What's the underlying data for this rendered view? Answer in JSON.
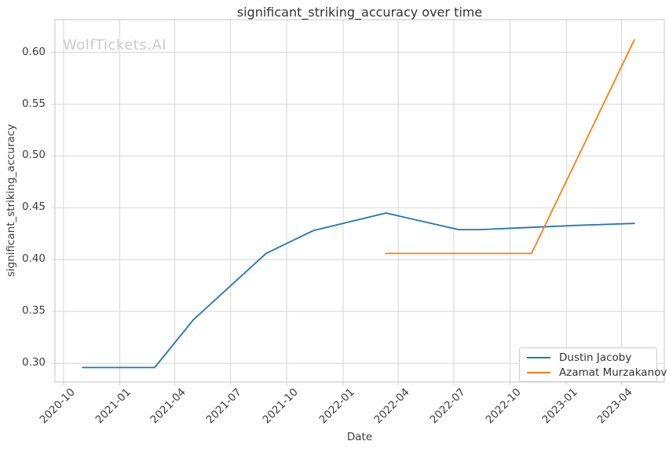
{
  "watermark": "WolfTickets.AI",
  "chart_data": {
    "type": "line",
    "title": "significant_striking_accuracy over time",
    "xlabel": "Date",
    "ylabel": "significant_striking_accuracy",
    "grid": true,
    "legend_position": "lower-right",
    "x_ticks": [
      "2020-10",
      "2021-01",
      "2021-04",
      "2021-07",
      "2021-10",
      "2022-01",
      "2022-04",
      "2022-07",
      "2022-10",
      "2023-01",
      "2023-04"
    ],
    "y_ticks": [
      "0.30",
      "0.35",
      "0.40",
      "0.45",
      "0.50",
      "0.55",
      "0.60"
    ],
    "xlim": [
      "2020-09-17",
      "2023-06-10"
    ],
    "ylim": [
      0.282,
      0.6315
    ],
    "colors": {
      "grid": "#d7d7d7",
      "spine": "#cfcfcf",
      "text": "#3d3d3d",
      "watermark": "#cbcbcb"
    },
    "series": [
      {
        "name": "Dustin Jacoby",
        "color": "#1f77b4",
        "points": [
          [
            "2020-11-01",
            0.296
          ],
          [
            "2021-02-27",
            0.296
          ],
          [
            "2021-05-01",
            0.342
          ],
          [
            "2021-08-28",
            0.406
          ],
          [
            "2021-11-13",
            0.428
          ],
          [
            "2022-03-12",
            0.445
          ],
          [
            "2022-07-09",
            0.429
          ],
          [
            "2022-08-13",
            0.429
          ],
          [
            "2023-01-14",
            0.433
          ],
          [
            "2023-04-22",
            0.435
          ]
        ]
      },
      {
        "name": "Azamat Murzakanov",
        "color": "#ff7f0e",
        "points": [
          [
            "2022-03-12",
            0.406
          ],
          [
            "2022-11-05",
            0.406
          ],
          [
            "2023-04-22",
            0.612
          ]
        ]
      }
    ]
  }
}
